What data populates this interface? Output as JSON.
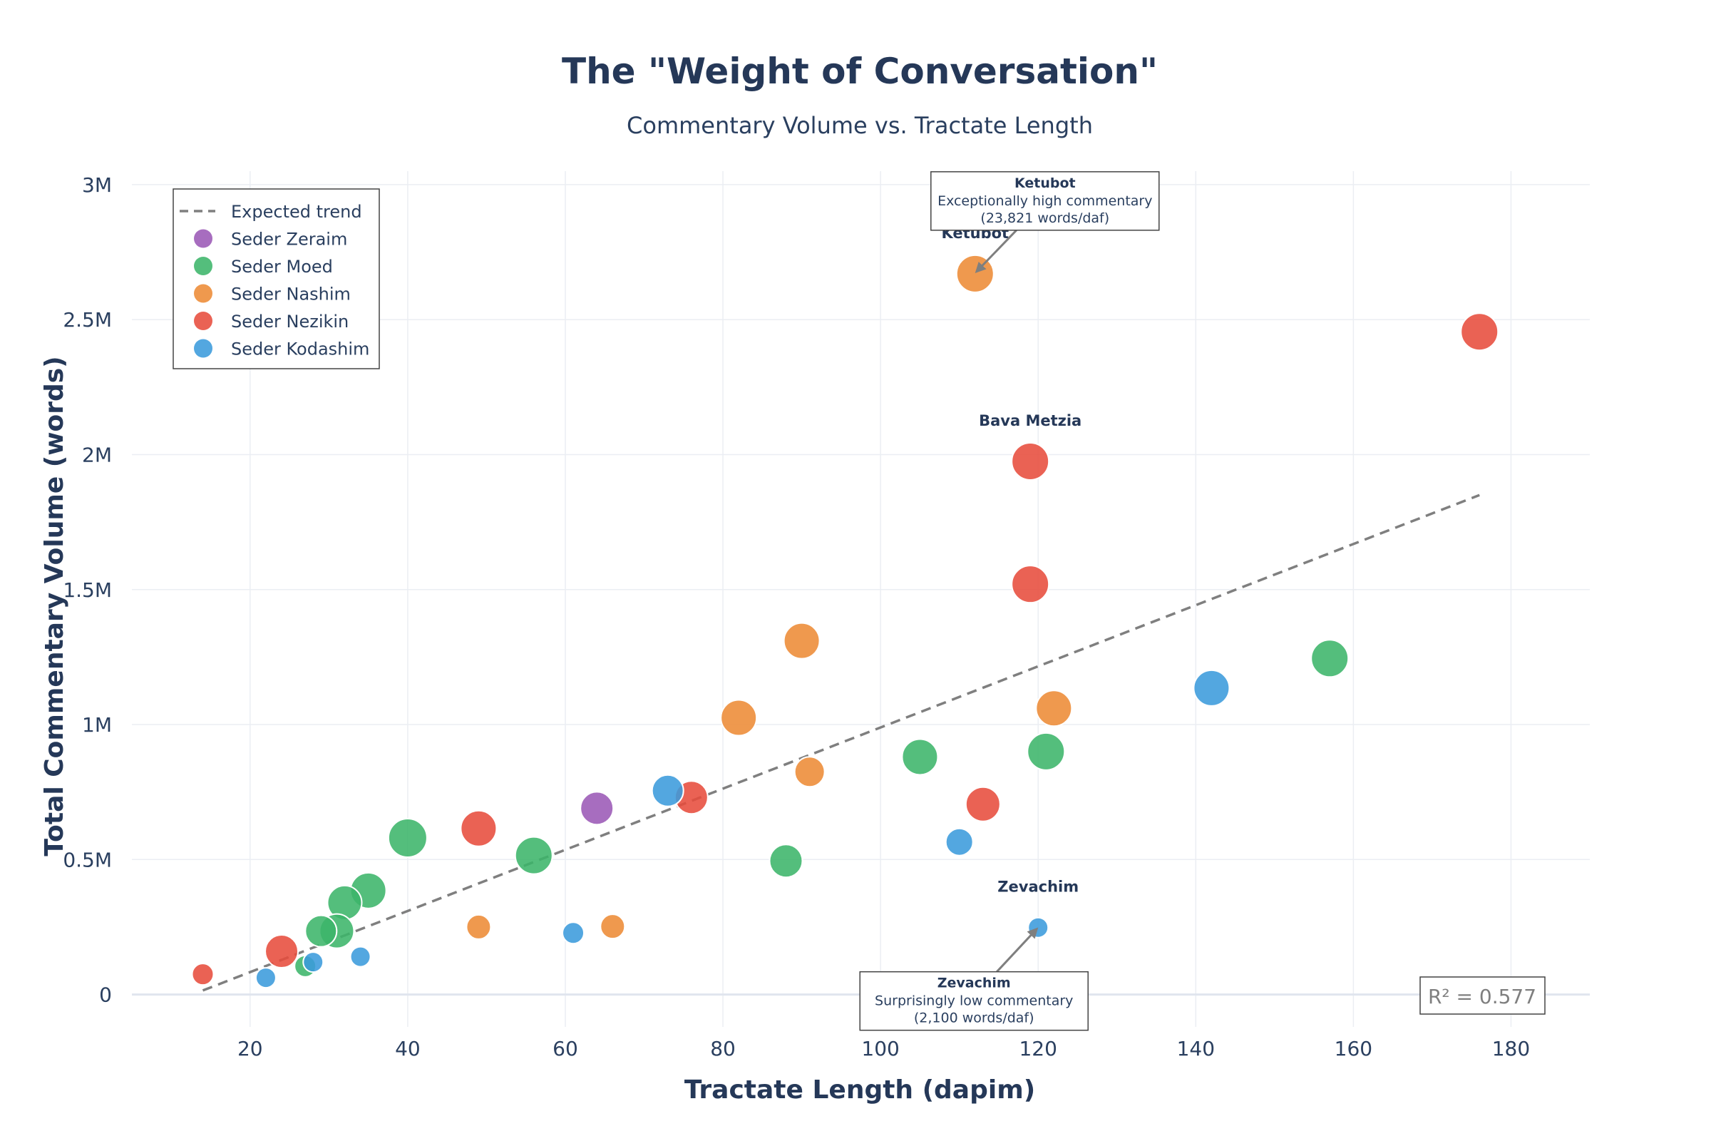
{
  "chart_data": {
    "type": "scatter",
    "title": "The \"Weight of Conversation\"",
    "subtitle": "Commentary Volume vs. Tractate Length",
    "xlabel": "Tractate Length (dapim)",
    "ylabel": "Total Commentary Volume (words)",
    "xlim": [
      5,
      190
    ],
    "ylim": [
      -120000,
      3050000
    ],
    "xticks": [
      20,
      40,
      60,
      80,
      100,
      120,
      140,
      160,
      180
    ],
    "yticks": [
      0,
      500000,
      1000000,
      1500000,
      2000000,
      2500000,
      3000000
    ],
    "ytick_labels": [
      "0",
      "0.5M",
      "1M",
      "1.5M",
      "2M",
      "2.5M",
      "3M"
    ],
    "grid": true,
    "legend_position": "top-left",
    "trend": {
      "name": "Expected trend",
      "x": [
        14,
        176
      ],
      "y": [
        15000,
        1850000
      ],
      "color": "#7f7f7f"
    },
    "r_squared_label": "R² = 0.577",
    "series": [
      {
        "name": "Seder Zeraim",
        "color": "#9b59b6",
        "points": [
          {
            "x": 64,
            "y": 690000,
            "r": 23
          }
        ]
      },
      {
        "name": "Seder Moed",
        "color": "#3cb56a",
        "points": [
          {
            "x": 157,
            "y": 1245000,
            "r": 26
          },
          {
            "x": 121,
            "y": 900000,
            "r": 26
          },
          {
            "x": 105,
            "y": 880000,
            "r": 25
          },
          {
            "x": 88,
            "y": 495000,
            "r": 23
          },
          {
            "x": 56,
            "y": 515000,
            "r": 26
          },
          {
            "x": 40,
            "y": 580000,
            "r": 27
          },
          {
            "x": 35,
            "y": 385000,
            "r": 25
          },
          {
            "x": 32,
            "y": 340000,
            "r": 24
          },
          {
            "x": 31,
            "y": 235000,
            "r": 24
          },
          {
            "x": 29,
            "y": 235000,
            "r": 22
          },
          {
            "x": 27,
            "y": 105000,
            "r": 15
          }
        ]
      },
      {
        "name": "Seder Nashim",
        "color": "#ed8b36",
        "points": [
          {
            "x": 112,
            "y": 2670000,
            "r": 26
          },
          {
            "x": 90,
            "y": 1310000,
            "r": 25
          },
          {
            "x": 122,
            "y": 1060000,
            "r": 25
          },
          {
            "x": 82,
            "y": 1025000,
            "r": 25
          },
          {
            "x": 91,
            "y": 825000,
            "r": 21
          },
          {
            "x": 49,
            "y": 250000,
            "r": 17
          },
          {
            "x": 66,
            "y": 252000,
            "r": 17
          }
        ]
      },
      {
        "name": "Seder Nezikin",
        "color": "#e74c3c",
        "points": [
          {
            "x": 176,
            "y": 2455000,
            "r": 26
          },
          {
            "x": 119,
            "y": 1975000,
            "r": 26
          },
          {
            "x": 119,
            "y": 1520000,
            "r": 26
          },
          {
            "x": 113,
            "y": 705000,
            "r": 24
          },
          {
            "x": 76,
            "y": 730000,
            "r": 23
          },
          {
            "x": 49,
            "y": 615000,
            "r": 25
          },
          {
            "x": 24,
            "y": 160000,
            "r": 23
          },
          {
            "x": 14,
            "y": 75000,
            "r": 15
          }
        ]
      },
      {
        "name": "Seder Kodashim",
        "color": "#3b9bdc",
        "points": [
          {
            "x": 142,
            "y": 1135000,
            "r": 25
          },
          {
            "x": 73,
            "y": 755000,
            "r": 22
          },
          {
            "x": 110,
            "y": 565000,
            "r": 19
          },
          {
            "x": 120,
            "y": 248000,
            "r": 14
          },
          {
            "x": 61,
            "y": 228000,
            "r": 15
          },
          {
            "x": 34,
            "y": 140000,
            "r": 14
          },
          {
            "x": 28,
            "y": 120000,
            "r": 14
          },
          {
            "x": 22,
            "y": 62000,
            "r": 14
          }
        ]
      }
    ],
    "point_labels": [
      {
        "text": "Ketubot",
        "x": 112,
        "y": 2670000
      },
      {
        "text": "Bava Metzia",
        "x": 119,
        "y": 1975000
      },
      {
        "text": "Zevachim",
        "x": 120,
        "y": 248000
      }
    ],
    "annotations": [
      {
        "target_x": 112,
        "target_y": 2670000,
        "title": "Ketubot",
        "lines": [
          "Exceptionally high commentary",
          "(23,821 words/daf)"
        ],
        "placement": "above-right"
      },
      {
        "target_x": 120,
        "target_y": 248000,
        "title": "Zevachim",
        "lines": [
          "Surprisingly low commentary",
          "(2,100 words/daf)"
        ],
        "placement": "below-left"
      }
    ]
  }
}
